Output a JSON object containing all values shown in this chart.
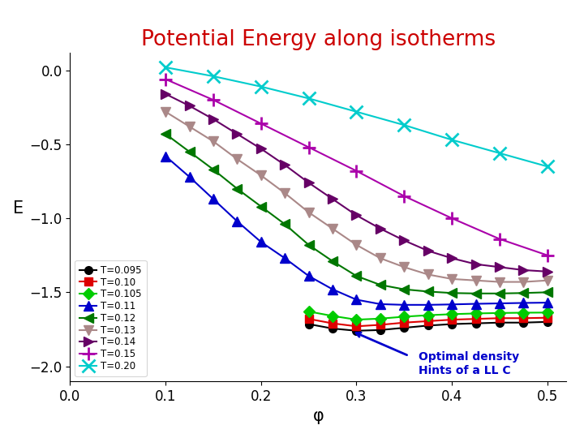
{
  "title": "Potential Energy along isotherms",
  "title_color": "#cc0000",
  "xlabel": "φ",
  "ylabel": "E",
  "xlim": [
    0,
    0.52
  ],
  "ylim": [
    -2.1,
    0.12
  ],
  "yticks": [
    0,
    -0.5,
    -1,
    -1.5,
    -2
  ],
  "xticks": [
    0,
    0.1,
    0.2,
    0.3,
    0.4,
    0.5
  ],
  "annotation_text": "Optimal density\nHints of a LL C",
  "annotation_color": "#0000cc",
  "series": [
    {
      "T": "T=0.095",
      "color": "#000000",
      "marker": "o",
      "markersize": 7,
      "phi": [
        0.25,
        0.275,
        0.3,
        0.325,
        0.35,
        0.375,
        0.4,
        0.425,
        0.45,
        0.475,
        0.5
      ],
      "E": [
        -1.715,
        -1.745,
        -1.76,
        -1.755,
        -1.74,
        -1.725,
        -1.715,
        -1.71,
        -1.705,
        -1.705,
        -1.7
      ]
    },
    {
      "T": "T=0.10",
      "color": "#dd0000",
      "marker": "s",
      "markersize": 7,
      "phi": [
        0.25,
        0.275,
        0.3,
        0.325,
        0.35,
        0.375,
        0.4,
        0.425,
        0.45,
        0.475,
        0.5
      ],
      "E": [
        -1.68,
        -1.71,
        -1.73,
        -1.72,
        -1.705,
        -1.695,
        -1.685,
        -1.68,
        -1.675,
        -1.675,
        -1.672
      ]
    },
    {
      "T": "T=0.105",
      "color": "#00cc00",
      "marker": "D",
      "markersize": 7,
      "phi": [
        0.25,
        0.275,
        0.3,
        0.325,
        0.35,
        0.375,
        0.4,
        0.425,
        0.45,
        0.475,
        0.5
      ],
      "E": [
        -1.63,
        -1.66,
        -1.685,
        -1.678,
        -1.665,
        -1.655,
        -1.648,
        -1.643,
        -1.64,
        -1.638,
        -1.637
      ]
    },
    {
      "T": "T=0.11",
      "color": "#0000cc",
      "marker": "^",
      "markersize": 9,
      "phi": [
        0.1,
        0.125,
        0.15,
        0.175,
        0.2,
        0.225,
        0.25,
        0.275,
        0.3,
        0.325,
        0.35,
        0.375,
        0.4,
        0.425,
        0.45,
        0.475,
        0.5
      ],
      "E": [
        -0.58,
        -0.72,
        -0.87,
        -1.02,
        -1.16,
        -1.27,
        -1.39,
        -1.48,
        -1.55,
        -1.58,
        -1.585,
        -1.585,
        -1.582,
        -1.578,
        -1.575,
        -1.572,
        -1.57
      ]
    },
    {
      "T": "T=0.12",
      "color": "#007700",
      "marker": "<",
      "markersize": 9,
      "phi": [
        0.1,
        0.125,
        0.15,
        0.175,
        0.2,
        0.225,
        0.25,
        0.275,
        0.3,
        0.325,
        0.35,
        0.375,
        0.4,
        0.425,
        0.45,
        0.475,
        0.5
      ],
      "E": [
        -0.43,
        -0.55,
        -0.67,
        -0.8,
        -0.92,
        -1.04,
        -1.18,
        -1.29,
        -1.39,
        -1.45,
        -1.48,
        -1.495,
        -1.505,
        -1.508,
        -1.508,
        -1.505,
        -1.5
      ]
    },
    {
      "T": "T=0.13",
      "color": "#aa8888",
      "marker": "v",
      "markersize": 9,
      "phi": [
        0.1,
        0.125,
        0.15,
        0.175,
        0.2,
        0.225,
        0.25,
        0.275,
        0.3,
        0.325,
        0.35,
        0.375,
        0.4,
        0.425,
        0.45,
        0.475,
        0.5
      ],
      "E": [
        -0.28,
        -0.38,
        -0.48,
        -0.6,
        -0.71,
        -0.83,
        -0.96,
        -1.07,
        -1.18,
        -1.27,
        -1.33,
        -1.38,
        -1.41,
        -1.42,
        -1.43,
        -1.43,
        -1.42
      ]
    },
    {
      "T": "T=0.14",
      "color": "#660066",
      "marker": ">",
      "markersize": 9,
      "phi": [
        0.1,
        0.125,
        0.15,
        0.175,
        0.2,
        0.225,
        0.25,
        0.275,
        0.3,
        0.325,
        0.35,
        0.375,
        0.4,
        0.425,
        0.45,
        0.475,
        0.5
      ],
      "E": [
        -0.16,
        -0.24,
        -0.33,
        -0.43,
        -0.53,
        -0.64,
        -0.76,
        -0.87,
        -0.98,
        -1.07,
        -1.15,
        -1.22,
        -1.27,
        -1.31,
        -1.33,
        -1.35,
        -1.36
      ]
    },
    {
      "T": "T=0.15",
      "color": "#aa00aa",
      "marker": "+",
      "markersize": 11,
      "phi": [
        0.1,
        0.15,
        0.2,
        0.25,
        0.3,
        0.35,
        0.4,
        0.45,
        0.5
      ],
      "E": [
        -0.06,
        -0.2,
        -0.36,
        -0.52,
        -0.68,
        -0.85,
        -1.0,
        -1.14,
        -1.25
      ]
    },
    {
      "T": "T=0.20",
      "color": "#00cccc",
      "marker": "x",
      "markersize": 11,
      "phi": [
        0.1,
        0.15,
        0.2,
        0.25,
        0.3,
        0.35,
        0.4,
        0.45,
        0.5
      ],
      "E": [
        0.02,
        -0.04,
        -0.11,
        -0.19,
        -0.28,
        -0.37,
        -0.47,
        -0.56,
        -0.65
      ]
    }
  ]
}
